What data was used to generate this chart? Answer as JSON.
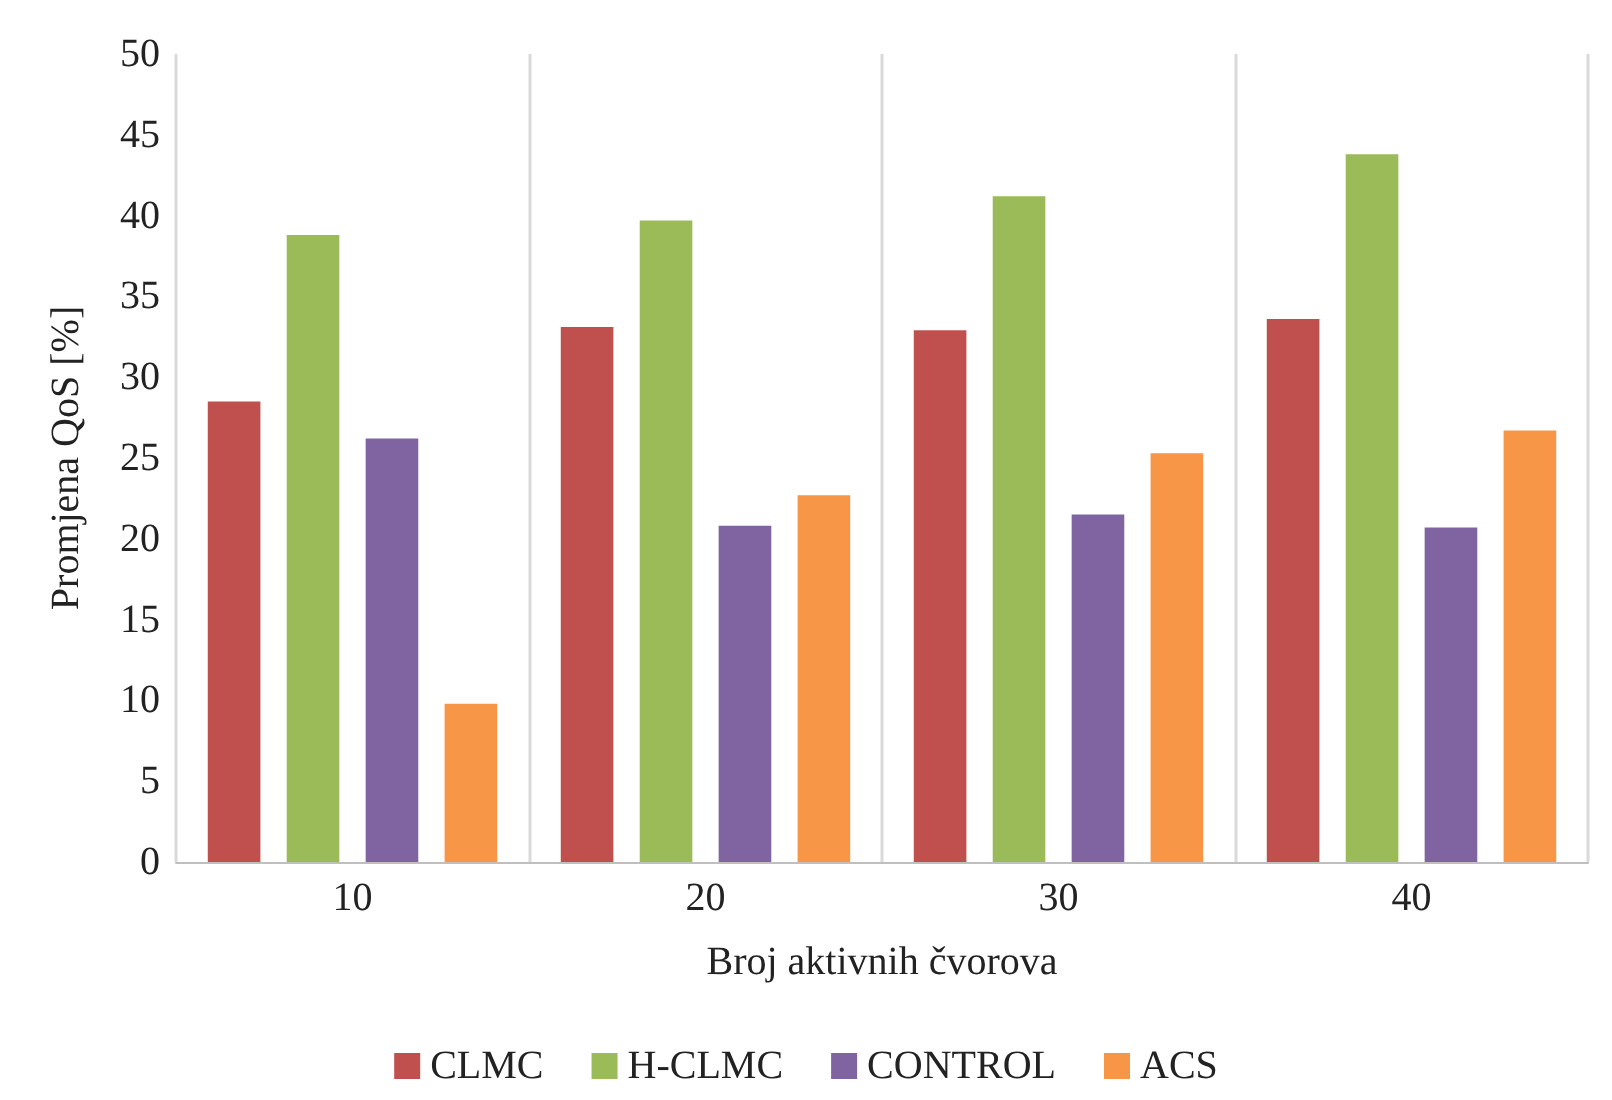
{
  "chart_data": {
    "type": "bar",
    "xlabel": "Broj aktivnih čvorova",
    "ylabel": "Promjena QoS [%]",
    "categories": [
      "10",
      "20",
      "30",
      "40"
    ],
    "series": [
      {
        "name": "CLMC",
        "color": "#c0504d",
        "values": [
          28.5,
          33.1,
          32.9,
          33.6
        ]
      },
      {
        "name": "H-CLMC",
        "color": "#9bbb59",
        "values": [
          38.8,
          39.7,
          41.2,
          43.8
        ]
      },
      {
        "name": "CONTROL",
        "color": "#8064a2",
        "values": [
          26.2,
          20.8,
          21.5,
          20.7
        ]
      },
      {
        "name": "ACS",
        "color": "#f79646",
        "values": [
          9.8,
          22.7,
          25.3,
          26.7
        ]
      }
    ],
    "ylim": [
      0,
      50
    ],
    "yticks": [
      0,
      5,
      10,
      15,
      20,
      25,
      30,
      35,
      40,
      45,
      50
    ],
    "grid": "x",
    "legend": "bottom"
  }
}
